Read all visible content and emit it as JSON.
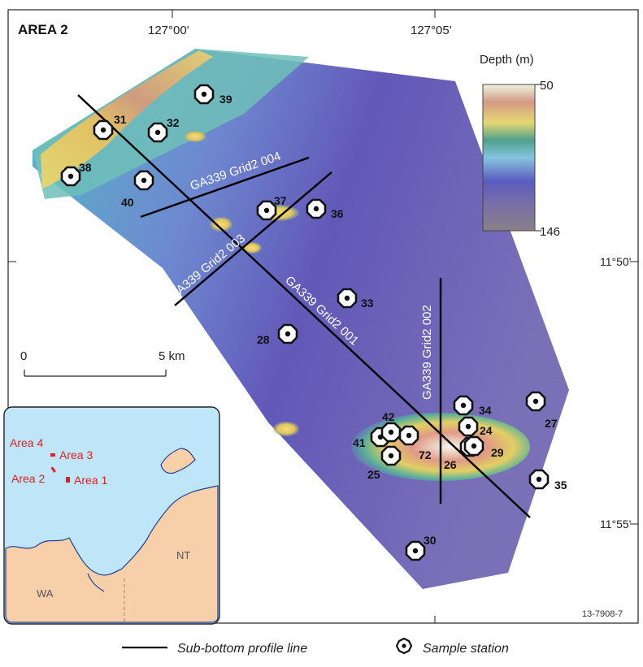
{
  "map": {
    "area_title": "AREA 2",
    "figure_id": "13-7908-7",
    "lon_ticks": [
      "127°00'",
      "127°05'"
    ],
    "lat_ticks": [
      "11°50'",
      "11°55'"
    ]
  },
  "depth_legend": {
    "title": "Depth (m)",
    "max_label": "50",
    "min_label": "146",
    "colors": [
      "#eef3dc",
      "#d49a86",
      "#e6d870",
      "#4f9f8d",
      "#86c4dc",
      "#5a5cc0",
      "#7a6fa8",
      "#888088"
    ]
  },
  "scale_bar": {
    "start_label": "0",
    "end_label": "5 km"
  },
  "profile_lines": [
    {
      "label": "GA339 Grid2 001"
    },
    {
      "label": "GA339 Grid2 002"
    },
    {
      "label": "GA339 Grid2 003"
    },
    {
      "label": "GA339 Grid2 004"
    }
  ],
  "stations": [
    "24",
    "25",
    "26",
    "27",
    "28",
    "29",
    "30",
    "31",
    "32",
    "33",
    "34",
    "35",
    "36",
    "37",
    "38",
    "39",
    "40",
    "41",
    "42",
    "72"
  ],
  "inset": {
    "area_labels": [
      "Area 4",
      "Area 3",
      "Area 2",
      "Area 1"
    ],
    "region_labels": [
      "NT",
      "WA"
    ],
    "sea_color": "#bfe6f8",
    "land_color": "#f7cfa8",
    "coast_color": "#1f3f9a",
    "label_color": "#e21d1d"
  },
  "legend": {
    "line_label": "Sub-bottom profile line",
    "station_label": "Sample station"
  }
}
